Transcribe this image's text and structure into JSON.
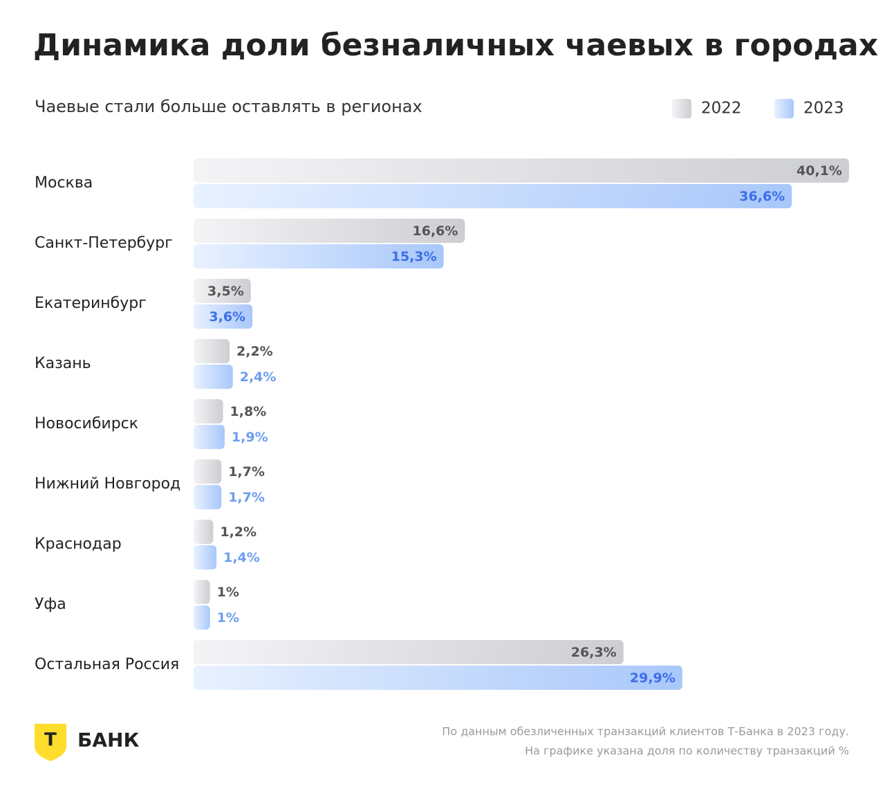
{
  "chart_data": {
    "type": "bar",
    "orientation": "horizontal",
    "title": "Динамика доли безналичных чаевых в городах",
    "subtitle": "Чаевые стали больше оставлять в регионах",
    "categories": [
      "Москва",
      "Санкт-Петербург",
      "Екатеринбург",
      "Казань",
      "Новосибирск",
      "Нижний Новгород",
      "Краснодар",
      "Уфа",
      "Остальная Россия"
    ],
    "series": [
      {
        "name": "2022",
        "color": "#cdced2",
        "label_color": "#555555",
        "values": [
          40.1,
          16.6,
          3.5,
          2.2,
          1.8,
          1.7,
          1.2,
          1,
          26.3
        ],
        "value_labels": [
          "40,1%",
          "16,6%",
          "3,5%",
          "2,2%",
          "1,8%",
          "1,7%",
          "1,2%",
          "1%",
          "26,3%"
        ]
      },
      {
        "name": "2023",
        "color": "#a8c7fa",
        "label_color": "#3b6ee8",
        "values": [
          36.6,
          15.3,
          3.6,
          2.4,
          1.9,
          1.7,
          1.4,
          1,
          29.9
        ],
        "value_labels": [
          "36,6%",
          "15,3%",
          "3,6%",
          "2,4%",
          "1,9%",
          "1,7%",
          "1,4%",
          "1%",
          "29,9%"
        ]
      }
    ],
    "legend": "top-right",
    "notes": [
      "По данным обезличенных транзакций клиентов Т-Банка в 2023 году.",
      "На графике указана доля по количеству транзакций %"
    ]
  },
  "logo": {
    "mark": "Т",
    "name": "БАНК"
  }
}
